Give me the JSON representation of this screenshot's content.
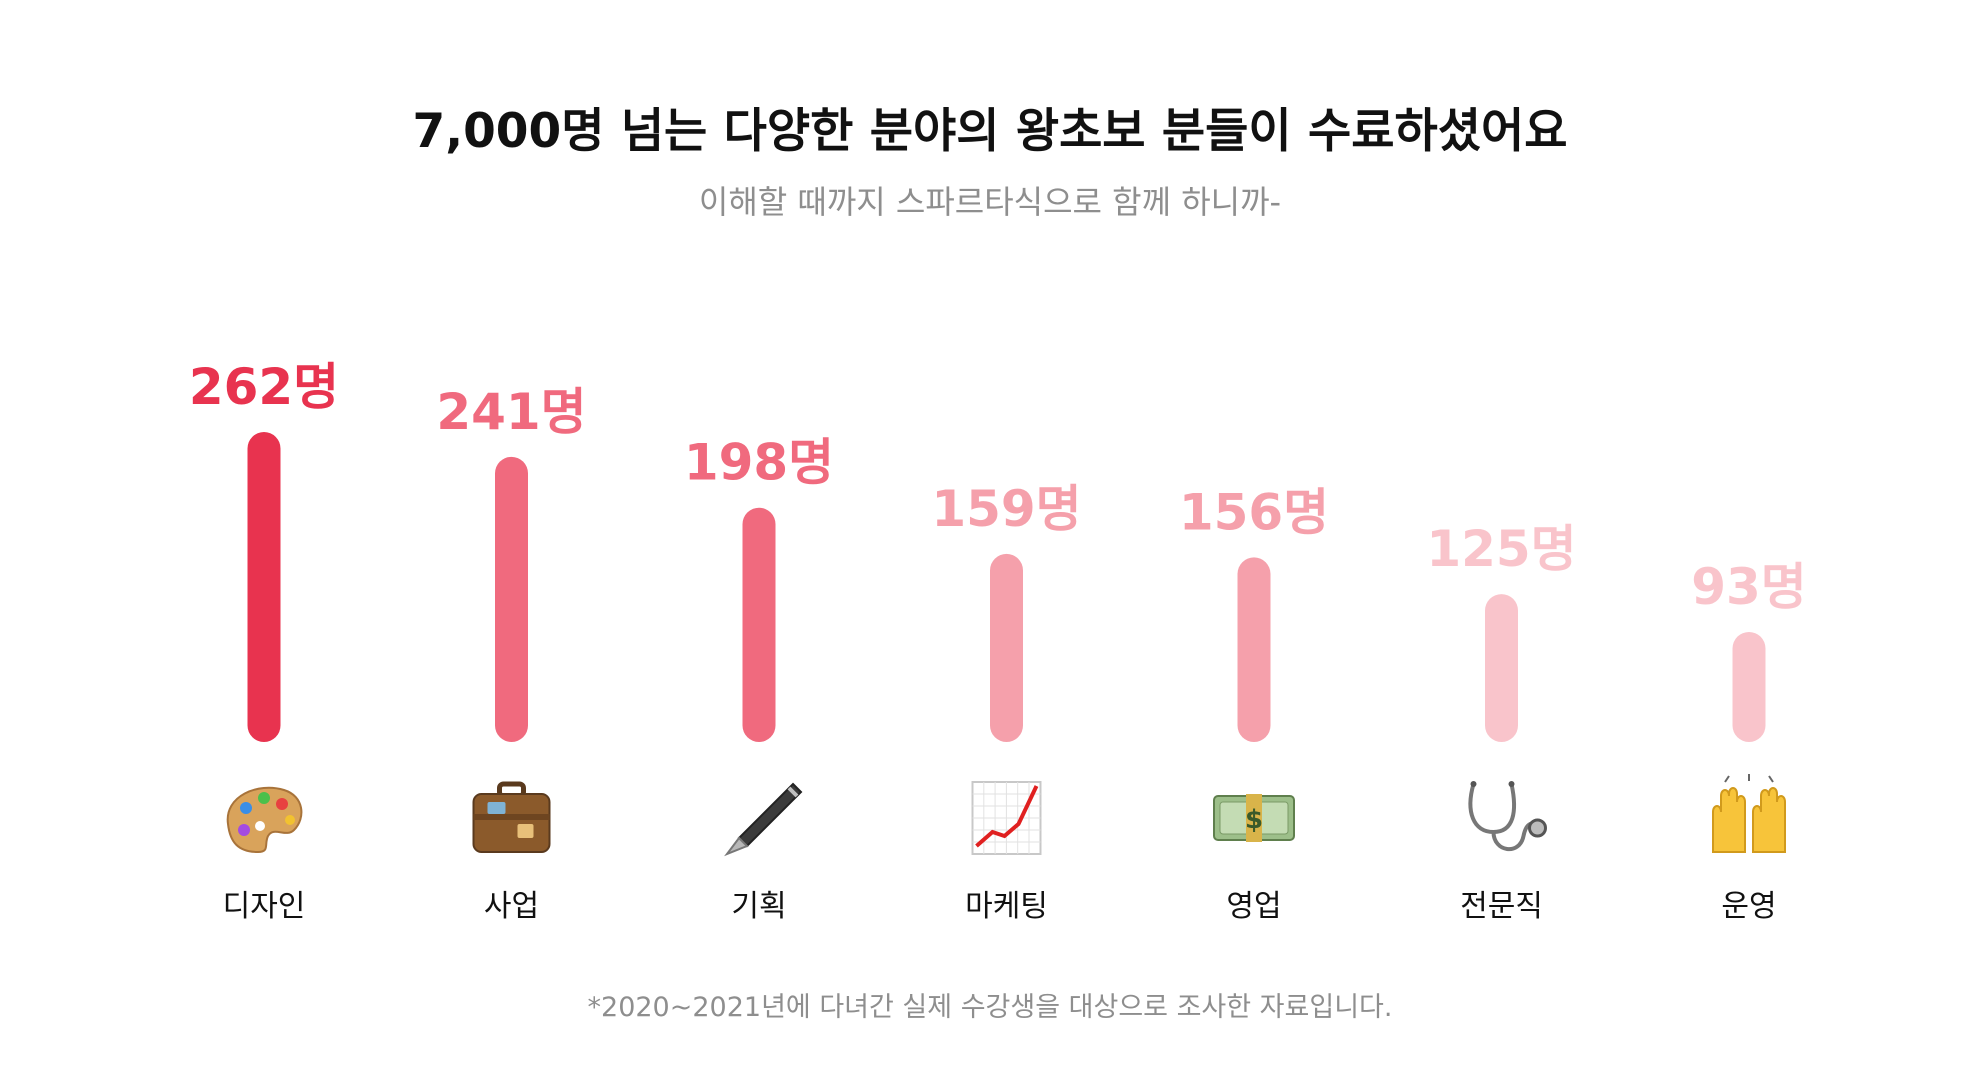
{
  "title": "7,000명 넘는 다양한 분야의 왕초보 분들이 수료하셨어요",
  "subtitle": "이해할 때까지 스파르타식으로 함께 하니까-",
  "footnote": "*2020~2021년에 다녀간 실제 수강생을 대상으로 조사한 자료입니다.",
  "chart_data": {
    "type": "bar",
    "title": "7,000명 넘는 다양한 분야의 왕초보 분들이 수료하셨어요",
    "subtitle": "이해할 때까지 스파르타식으로 함께 하니까-",
    "xlabel": "",
    "ylabel": "",
    "value_suffix": "명",
    "grid": false,
    "categories": [
      "디자인",
      "사업",
      "기획",
      "마케팅",
      "영업",
      "전문직",
      "운영"
    ],
    "values": [
      262,
      241,
      198,
      159,
      156,
      125,
      93
    ],
    "icons": [
      "palette-icon",
      "briefcase-icon",
      "pen-icon",
      "chart-increasing-icon",
      "money-icon",
      "stethoscope-icon",
      "raising-hands-icon"
    ],
    "colors": [
      "#e8334f",
      "#f06a7e",
      "#f06a7e",
      "#f5a0ab",
      "#f5a0ab",
      "#f9c4cb",
      "#f9c4cb"
    ]
  }
}
